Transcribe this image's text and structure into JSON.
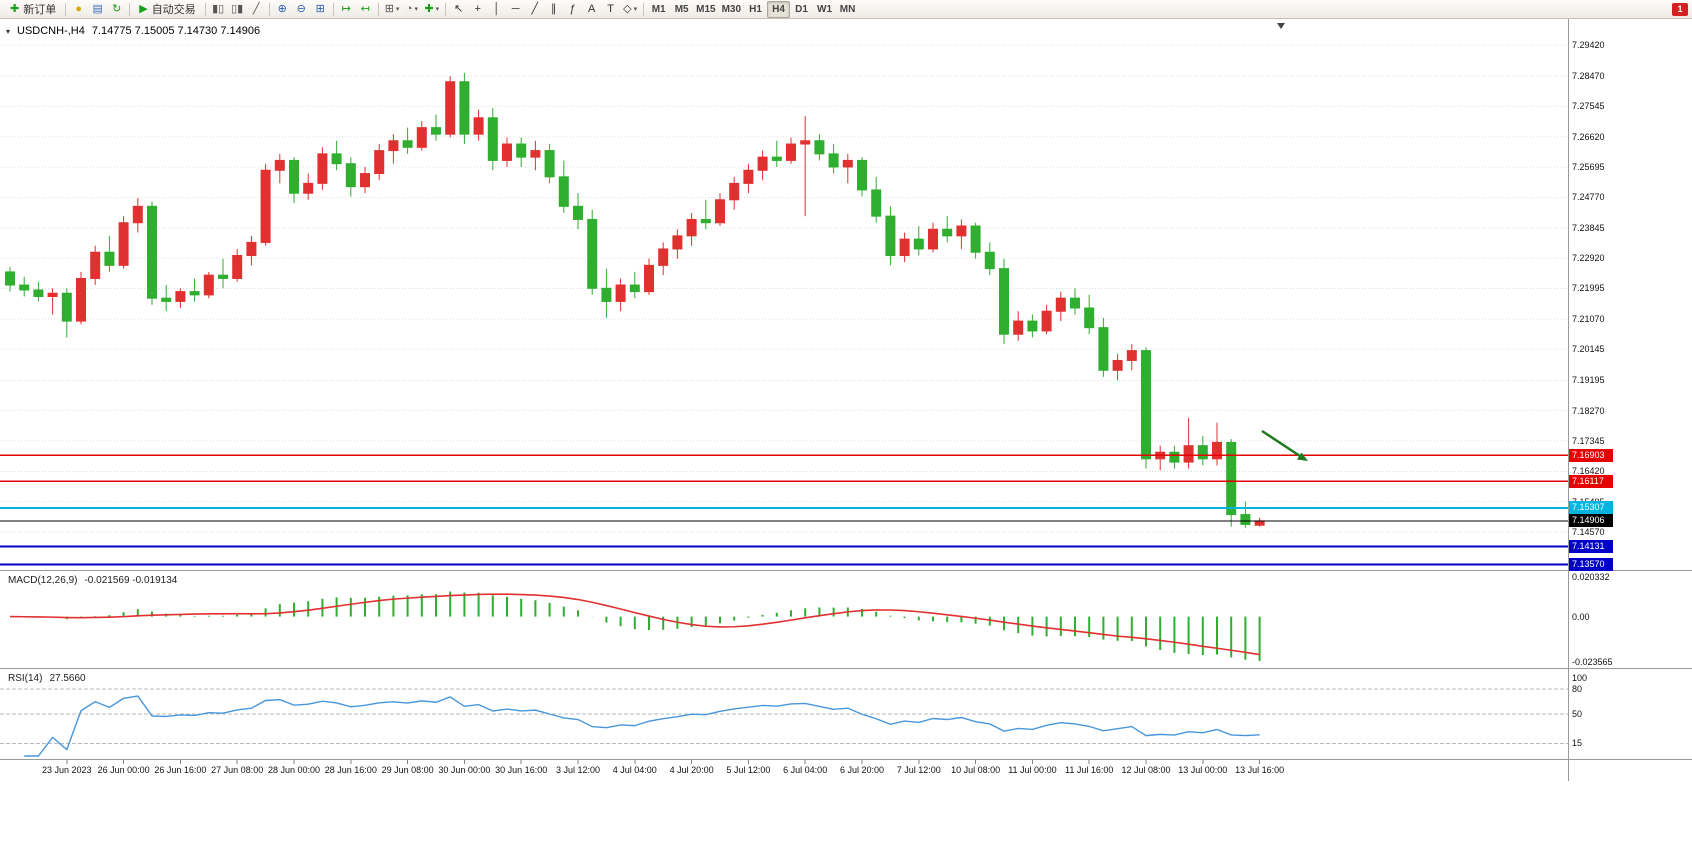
{
  "toolbar": {
    "groups": [
      {
        "items": [
          {
            "name": "new-order-button",
            "icon": "new-order-icon",
            "glyph": "✚",
            "color": "#18a018",
            "label": "新订单"
          }
        ]
      },
      {
        "items": [
          {
            "name": "mql5-community-button",
            "icon": "mql5-community-icon",
            "glyph": "●",
            "color": "#e0a200"
          },
          {
            "name": "profiles-button",
            "icon": "profiles-icon",
            "glyph": "▤",
            "color": "#3b6fb5"
          },
          {
            "name": "refresh-button",
            "icon": "refresh-icon",
            "glyph": "↻",
            "color": "#18a018"
          }
        ]
      },
      {
        "items": [
          {
            "name": "auto-trading-button",
            "icon": "auto-trading-icon",
            "glyph": "▶",
            "color": "#18a018",
            "label": "自动交易"
          }
        ]
      },
      {
        "items": [
          {
            "name": "bar-chart-button",
            "icon": "bar-chart-icon",
            "glyph": "▮▯",
            "color": "#555555"
          },
          {
            "name": "candlestick-chart-button",
            "icon": "candlestick-chart-icon",
            "glyph": "▯▮",
            "color": "#555555"
          },
          {
            "name": "line-chart-button",
            "icon": "line-chart-icon",
            "glyph": "╱",
            "color": "#555555"
          }
        ]
      },
      {
        "items": [
          {
            "name": "zoom-in-button",
            "icon": "zoom-in-icon",
            "glyph": "⊕",
            "color": "#2a5db0"
          },
          {
            "name": "zoom-out-button",
            "icon": "zoom-out-icon",
            "glyph": "⊖",
            "color": "#2a5db0"
          },
          {
            "name": "tile-windows-button",
            "icon": "tile-windows-icon",
            "glyph": "⊞",
            "color": "#2a5db0"
          }
        ]
      },
      {
        "items": [
          {
            "name": "auto-scroll-button",
            "icon": "auto-scroll-icon",
            "glyph": "↦",
            "color": "#18a018"
          },
          {
            "name": "chart-shift-button",
            "icon": "chart-shift-icon",
            "glyph": "↤",
            "color": "#18a018"
          }
        ]
      },
      {
        "items": [
          {
            "name": "new-chart-dropdown",
            "icon": "new-chart-icon",
            "glyph": "⊞",
            "color": "#555555",
            "caret": true
          },
          {
            "name": "period-dropdown",
            "icon": "clock-icon",
            "glyph": "◔",
            "color": "#555555",
            "caret": true
          },
          {
            "name": "indicators-dropdown",
            "icon": "indicators-icon",
            "glyph": "✚",
            "color": "#18a018",
            "caret": true
          }
        ]
      },
      {
        "items": [
          {
            "name": "cursor-button",
            "icon": "cursor-icon",
            "glyph": "↖",
            "color": "#333333"
          },
          {
            "name": "crosshair-button",
            "icon": "crosshair-icon",
            "glyph": "+",
            "color": "#333333"
          },
          {
            "name": "vertical-line-button",
            "icon": "vertical-line-icon",
            "glyph": "│",
            "color": "#333333"
          },
          {
            "name": "horizontal-line-button",
            "icon": "horizontal-line-icon",
            "glyph": "─",
            "color": "#333333"
          },
          {
            "name": "trendline-button",
            "icon": "trendline-icon",
            "glyph": "╱",
            "color": "#333333"
          },
          {
            "name": "channel-button",
            "icon": "channel-icon",
            "glyph": "∥",
            "color": "#333333"
          },
          {
            "name": "fibonacci-button",
            "icon": "fibonacci-icon",
            "glyph": "ƒ",
            "color": "#333333"
          },
          {
            "name": "text-button",
            "icon": "text-icon",
            "glyph": "A",
            "color": "#333333"
          },
          {
            "name": "label-button",
            "icon": "label-icon",
            "glyph": "T",
            "color": "#333333"
          },
          {
            "name": "shapes-dropdown",
            "icon": "shapes-icon",
            "glyph": "◇",
            "color": "#333333",
            "caret": true
          }
        ]
      },
      {
        "items": [
          {
            "name": "timeframe-m1",
            "label": "M1",
            "tf": true
          },
          {
            "name": "timeframe-m5",
            "label": "M5",
            "tf": true
          },
          {
            "name": "timeframe-m15",
            "label": "M15",
            "tf": true
          },
          {
            "name": "timeframe-m30",
            "label": "M30",
            "tf": true
          },
          {
            "name": "timeframe-h1",
            "label": "H1",
            "tf": true
          },
          {
            "name": "timeframe-h4",
            "label": "H4",
            "tf": true,
            "active": true
          },
          {
            "name": "timeframe-d1",
            "label": "D1",
            "tf": true
          },
          {
            "name": "timeframe-w1",
            "label": "W1",
            "tf": true
          },
          {
            "name": "timeframe-mn",
            "label": "MN",
            "tf": true
          }
        ]
      }
    ],
    "notification": {
      "name": "notification-badge",
      "label": "1",
      "color": "#d42020"
    }
  },
  "chart": {
    "symbol_period": "USDCNH-,H4",
    "ohlc_text": "7.14775 7.15005 7.14730 7.14906",
    "price_axis_labels": [
      "7.29420",
      "7.28470",
      "7.27545",
      "7.26620",
      "7.25695",
      "7.24770",
      "7.23845",
      "7.22920",
      "7.21995",
      "7.21070",
      "7.20145",
      "7.19195",
      "7.18270",
      "7.17345",
      "7.16420",
      "7.15495",
      "7.14570"
    ],
    "time_axis_labels": [
      "23 Jun 2023",
      "26 Jun 00:00",
      "26 Jun 16:00",
      "27 Jun 08:00",
      "28 Jun 00:00",
      "28 Jun 16:00",
      "29 Jun 08:00",
      "30 Jun 00:00",
      "30 Jun 16:00",
      "3 Jul 12:00",
      "4 Jul 04:00",
      "4 Jul 20:00",
      "5 Jul 12:00",
      "6 Jul 04:00",
      "6 Jul 20:00",
      "7 Jul 12:00",
      "10 Jul 08:00",
      "11 Jul 00:00",
      "11 Jul 16:00",
      "12 Jul 08:00",
      "13 Jul 00:00",
      "13 Jul 16:00"
    ],
    "hlines": [
      {
        "price": 7.16903,
        "label": "7.16903",
        "color": "#e60000",
        "width": 1.4
      },
      {
        "price": 7.16117,
        "label": "7.16117",
        "color": "#e60000",
        "width": 1.4
      },
      {
        "price": 7.15307,
        "label": "7.15307",
        "color": "#00b4e0",
        "width": 2
      },
      {
        "price": 7.14131,
        "label": "7.14131",
        "color": "#0000c8",
        "width": 2
      },
      {
        "price": 7.1357,
        "label": "7.13570",
        "color": "#0000c8",
        "width": 2
      }
    ],
    "current_price": {
      "price": 7.14906,
      "label": "7.14906",
      "color": "#000000"
    },
    "annotation_arrow_color": "#1f7a1f"
  },
  "indicators": {
    "macd": {
      "name": "MACD(12,26,9)",
      "values": "-0.021569 -0.019134",
      "value_main": -0.021569,
      "value_signal": -0.019134,
      "fast": 12,
      "slow": 26,
      "signal": 9,
      "axis_labels": [
        "0.020332",
        "0.00",
        "-0.023565"
      ],
      "max": 0.020332,
      "min": -0.023565,
      "hist_color": "#2fae2f",
      "signal_color": "#e03030"
    },
    "rsi": {
      "name": "RSI(14)",
      "value": "27.5660",
      "period": 14,
      "axis_labels": [
        "100",
        "80",
        "50",
        "15"
      ],
      "levels": [
        80,
        50,
        15
      ],
      "max": 100,
      "min": 0,
      "color": "#4896dc"
    }
  },
  "chart_data": {
    "type": "candlestick",
    "symbol": "USDCNH-",
    "timeframe": "H4",
    "up_color": "#e03030",
    "down_color": "#2fae2f",
    "note": "red = bullish, green = bearish (CN convention); candles as [open,high,low,close]",
    "visible_price_range": [
      7.134,
      7.302
    ],
    "candles": [
      [
        7.225,
        7.2265,
        7.219,
        7.221
      ],
      [
        7.221,
        7.2235,
        7.2175,
        7.2195
      ],
      [
        7.2195,
        7.222,
        7.216,
        7.2175
      ],
      [
        7.2175,
        7.22,
        7.212,
        7.2185
      ],
      [
        7.2185,
        7.22,
        7.205,
        7.21
      ],
      [
        7.21,
        7.225,
        7.209,
        7.223
      ],
      [
        7.223,
        7.233,
        7.221,
        7.231
      ],
      [
        7.231,
        7.236,
        7.225,
        7.227
      ],
      [
        7.227,
        7.242,
        7.226,
        7.24
      ],
      [
        7.24,
        7.2475,
        7.237,
        7.245
      ],
      [
        7.245,
        7.2465,
        7.215,
        7.217
      ],
      [
        7.217,
        7.221,
        7.213,
        7.216
      ],
      [
        7.216,
        7.22,
        7.214,
        7.219
      ],
      [
        7.219,
        7.223,
        7.216,
        7.218
      ],
      [
        7.218,
        7.225,
        7.217,
        7.224
      ],
      [
        7.224,
        7.229,
        7.22,
        7.223
      ],
      [
        7.223,
        7.232,
        7.222,
        7.23
      ],
      [
        7.23,
        7.236,
        7.227,
        7.234
      ],
      [
        7.234,
        7.258,
        7.233,
        7.256
      ],
      [
        7.256,
        7.261,
        7.252,
        7.259
      ],
      [
        7.259,
        7.26,
        7.246,
        7.249
      ],
      [
        7.249,
        7.255,
        7.247,
        7.252
      ],
      [
        7.252,
        7.263,
        7.25,
        7.261
      ],
      [
        7.261,
        7.265,
        7.256,
        7.258
      ],
      [
        7.258,
        7.26,
        7.248,
        7.251
      ],
      [
        7.251,
        7.257,
        7.249,
        7.255
      ],
      [
        7.255,
        7.264,
        7.253,
        7.262
      ],
      [
        7.262,
        7.267,
        7.258,
        7.265
      ],
      [
        7.265,
        7.269,
        7.261,
        7.263
      ],
      [
        7.263,
        7.271,
        7.262,
        7.269
      ],
      [
        7.269,
        7.273,
        7.265,
        7.267
      ],
      [
        7.267,
        7.2847,
        7.266,
        7.283
      ],
      [
        7.283,
        7.2857,
        7.264,
        7.267
      ],
      [
        7.267,
        7.2745,
        7.265,
        7.272
      ],
      [
        7.272,
        7.275,
        7.256,
        7.259
      ],
      [
        7.259,
        7.266,
        7.257,
        7.264
      ],
      [
        7.264,
        7.266,
        7.257,
        7.26
      ],
      [
        7.26,
        7.265,
        7.256,
        7.262
      ],
      [
        7.262,
        7.264,
        7.252,
        7.254
      ],
      [
        7.254,
        7.259,
        7.243,
        7.245
      ],
      [
        7.245,
        7.249,
        7.238,
        7.241
      ],
      [
        7.241,
        7.244,
        7.218,
        7.22
      ],
      [
        7.22,
        7.226,
        7.211,
        7.216
      ],
      [
        7.216,
        7.223,
        7.213,
        7.221
      ],
      [
        7.221,
        7.225,
        7.217,
        7.219
      ],
      [
        7.219,
        7.229,
        7.218,
        7.227
      ],
      [
        7.227,
        7.234,
        7.224,
        7.232
      ],
      [
        7.232,
        7.238,
        7.229,
        7.236
      ],
      [
        7.236,
        7.243,
        7.233,
        7.241
      ],
      [
        7.241,
        7.247,
        7.238,
        7.24
      ],
      [
        7.24,
        7.249,
        7.239,
        7.247
      ],
      [
        7.247,
        7.254,
        7.244,
        7.252
      ],
      [
        7.252,
        7.258,
        7.249,
        7.256
      ],
      [
        7.256,
        7.262,
        7.253,
        7.26
      ],
      [
        7.26,
        7.265,
        7.257,
        7.259
      ],
      [
        7.259,
        7.266,
        7.258,
        7.264
      ],
      [
        7.264,
        7.2725,
        7.242,
        7.265
      ],
      [
        7.265,
        7.267,
        7.259,
        7.261
      ],
      [
        7.261,
        7.264,
        7.255,
        7.257
      ],
      [
        7.257,
        7.261,
        7.252,
        7.259
      ],
      [
        7.259,
        7.26,
        7.248,
        7.25
      ],
      [
        7.25,
        7.254,
        7.24,
        7.242
      ],
      [
        7.242,
        7.245,
        7.227,
        7.23
      ],
      [
        7.23,
        7.237,
        7.228,
        7.235
      ],
      [
        7.235,
        7.239,
        7.23,
        7.232
      ],
      [
        7.232,
        7.24,
        7.231,
        7.238
      ],
      [
        7.238,
        7.242,
        7.234,
        7.236
      ],
      [
        7.236,
        7.241,
        7.232,
        7.239
      ],
      [
        7.239,
        7.24,
        7.229,
        7.231
      ],
      [
        7.231,
        7.234,
        7.224,
        7.226
      ],
      [
        7.226,
        7.229,
        7.203,
        7.206
      ],
      [
        7.206,
        7.213,
        7.204,
        7.21
      ],
      [
        7.21,
        7.212,
        7.205,
        7.207
      ],
      [
        7.207,
        7.215,
        7.206,
        7.213
      ],
      [
        7.213,
        7.219,
        7.21,
        7.217
      ],
      [
        7.217,
        7.22,
        7.212,
        7.214
      ],
      [
        7.214,
        7.218,
        7.206,
        7.208
      ],
      [
        7.208,
        7.211,
        7.193,
        7.195
      ],
      [
        7.195,
        7.2,
        7.192,
        7.198
      ],
      [
        7.198,
        7.203,
        7.195,
        7.201
      ],
      [
        7.201,
        7.202,
        7.165,
        7.168
      ],
      [
        7.168,
        7.172,
        7.1645,
        7.17
      ],
      [
        7.17,
        7.172,
        7.165,
        7.167
      ],
      [
        7.167,
        7.1805,
        7.165,
        7.172
      ],
      [
        7.172,
        7.175,
        7.166,
        7.168
      ],
      [
        7.168,
        7.179,
        7.166,
        7.173
      ],
      [
        7.173,
        7.174,
        7.1473,
        7.151
      ],
      [
        7.151,
        7.155,
        7.147,
        7.148
      ],
      [
        7.14775,
        7.15005,
        7.1473,
        7.14906
      ]
    ]
  }
}
